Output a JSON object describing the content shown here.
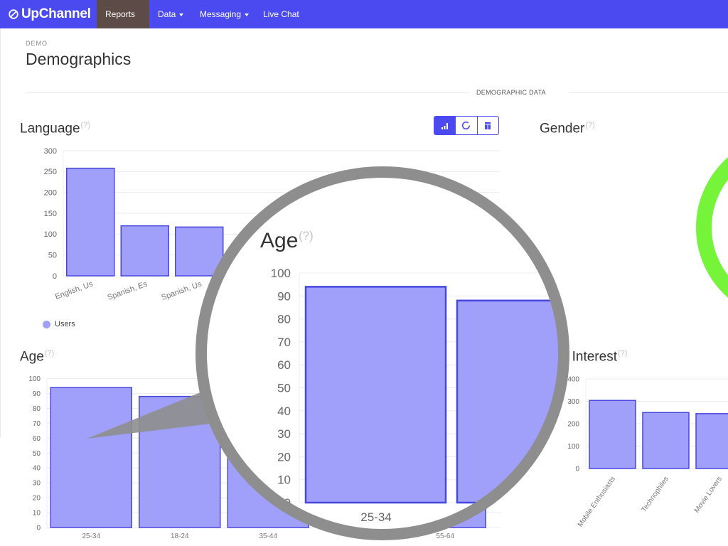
{
  "nav": {
    "brand": "UpChannel",
    "items": [
      {
        "label": "Reports",
        "active": true,
        "dropdown": true
      },
      {
        "label": "Data",
        "active": false,
        "dropdown": true
      },
      {
        "label": "Messaging",
        "active": false,
        "dropdown": true
      },
      {
        "label": "Live Chat",
        "active": false,
        "dropdown": false
      }
    ],
    "bar_color": "#4a4af0"
  },
  "breadcrumb": "DEMO",
  "page_title": "Demographics",
  "section_label": "DEMOGRAPHIC DATA",
  "help_marker": "(?)",
  "chart_type_buttons": [
    {
      "icon": "bar-chart-icon",
      "active": true
    },
    {
      "icon": "doughnut-chart-icon",
      "active": false
    },
    {
      "icon": "table-icon",
      "active": false
    }
  ],
  "cards": {
    "language": {
      "title": "Language"
    },
    "gender": {
      "title": "Gender"
    },
    "age": {
      "title": "Age"
    },
    "interest": {
      "title": "Interest",
      "visible_title": "r Interest"
    }
  },
  "magnifier": {
    "title": "Age",
    "x_label": "25-34"
  },
  "colors": {
    "bar_fill": "#a0a0fb",
    "bar_border": "#4747e0",
    "gender_ring": "#76f43a"
  },
  "chart_data": [
    {
      "id": "language",
      "type": "bar",
      "title": "Language",
      "categories": [
        "English, Us",
        "Spanish, Es",
        "Spanish, Us"
      ],
      "series": [
        {
          "name": "Users",
          "values": [
            258,
            120,
            117
          ]
        }
      ],
      "ylim": [
        0,
        300
      ],
      "yticks": [
        0,
        50,
        100,
        150,
        200,
        250,
        300
      ],
      "grid": true,
      "legend": "bottom-left"
    },
    {
      "id": "age",
      "type": "bar",
      "title": "Age",
      "categories": [
        "25-34",
        "18-24",
        "35-44",
        "",
        "55-64"
      ],
      "values": [
        94,
        88,
        71,
        64,
        60
      ],
      "ylim": [
        0,
        100
      ],
      "yticks": [
        0,
        10,
        20,
        30,
        40,
        50,
        60,
        70,
        80,
        90,
        100
      ],
      "grid": true
    },
    {
      "id": "interest",
      "type": "bar",
      "title": "Interest",
      "categories": [
        "Mobile Enthusiasts",
        "Technophiles",
        "Movie Lovers"
      ],
      "values": [
        304,
        250,
        245
      ],
      "ylim": [
        0,
        400
      ],
      "yticks": [
        0,
        100,
        200,
        300,
        400
      ],
      "grid": true
    }
  ]
}
